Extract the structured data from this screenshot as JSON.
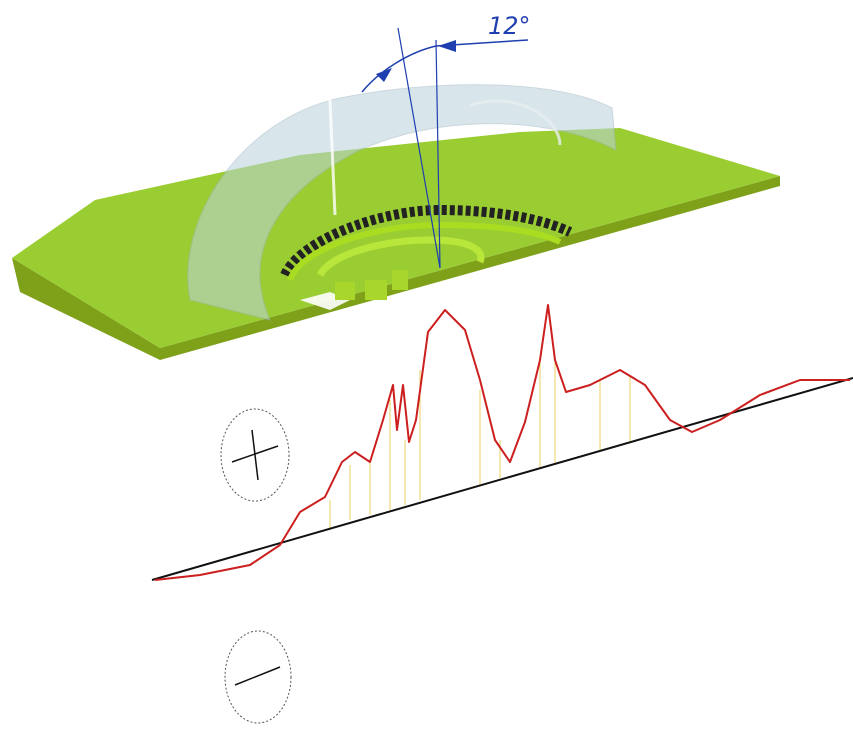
{
  "annotation": {
    "angle": "12°"
  }
}
